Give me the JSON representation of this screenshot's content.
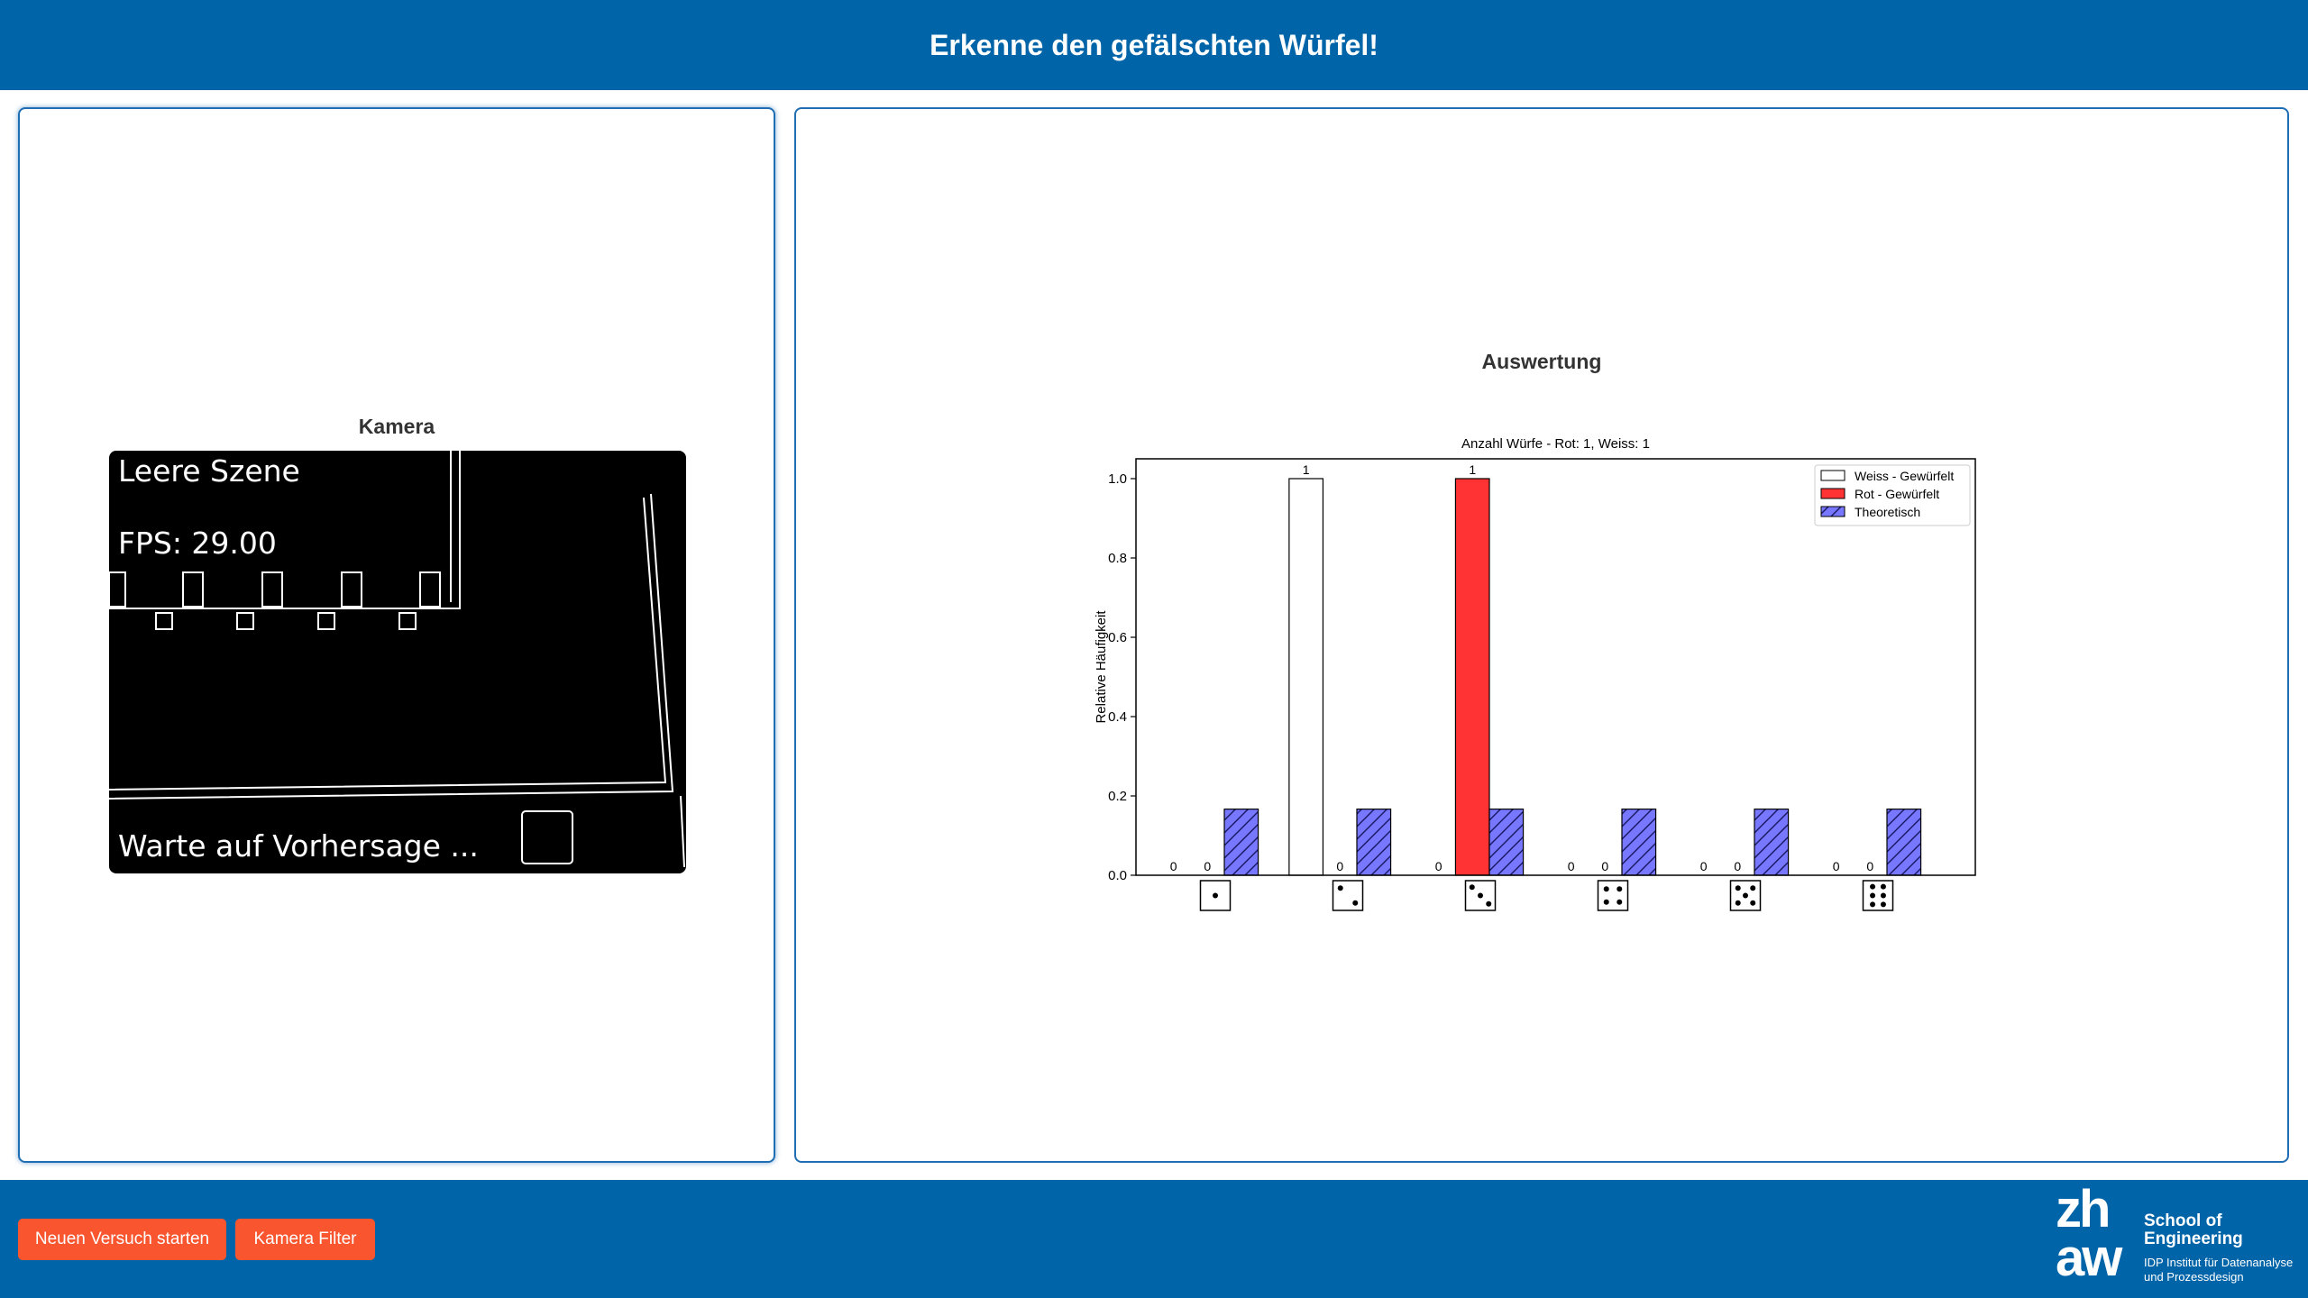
{
  "header": {
    "title": "Erkenne den gefälschten Würfel!"
  },
  "camera": {
    "title": "Kamera",
    "status": "Leere Szene",
    "fps": "FPS: 29.00",
    "message": "Warte auf Vorhersage ..."
  },
  "evaluation": {
    "title": "Auswertung"
  },
  "chart_data": {
    "type": "bar",
    "title": "Anzahl Würfe - Rot: 1, Weiss: 1",
    "y_label": "Relative Häufigkeit",
    "categories": [
      null,
      null,
      null,
      null,
      null,
      null
    ],
    "series": [
      {
        "name": "Weiss - Gewürfelt",
        "color": "#ffffff",
        "values": [
          0,
          1,
          0,
          0,
          0,
          0
        ],
        "show_labels": true
      },
      {
        "name": "Rot - Gewürfelt",
        "color": "#ff3333",
        "values": [
          0,
          0,
          1,
          0,
          0,
          0
        ],
        "show_labels": true
      },
      {
        "name": "Theoretisch",
        "color": "#7777ff",
        "hatch": "//",
        "values": [
          0.1667,
          0.1667,
          0.1667,
          0.1667,
          0.1667,
          0.1667
        ],
        "show_labels": false
      }
    ],
    "ylim": [
      0,
      1.05
    ],
    "yticks": [
      {
        "value": 0,
        "label": "0.0"
      },
      0.2,
      0.4,
      0.6,
      0.8,
      {
        "value": 1,
        "label": "1.0"
      }
    ],
    "grid": false,
    "legend": "upper right"
  },
  "footer": {
    "buttons": [
      "Neuen Versuch starten",
      "Kamera Filter"
    ],
    "logo": {
      "mark_top": "zh",
      "mark_bottom": "aw",
      "name_line1": "School of",
      "name_line2": "Engineering",
      "institute_line1": "IDP Institut für Datenanalyse",
      "institute_line2": "und Prozessdesign"
    }
  }
}
